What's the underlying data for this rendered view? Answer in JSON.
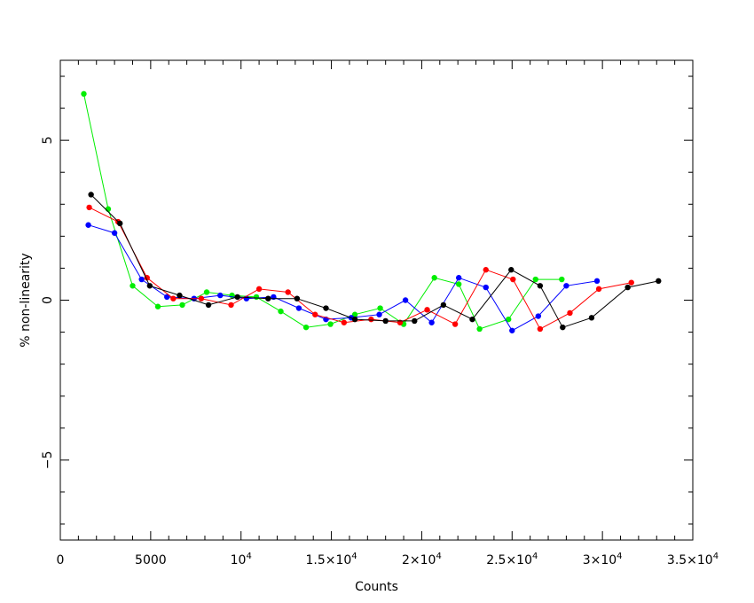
{
  "chart_data": {
    "type": "scatter",
    "title": "",
    "xlabel": "Counts",
    "ylabel": "% non-linearity",
    "xlim": [
      0,
      35000
    ],
    "ylim": [
      -7.5,
      7.5
    ],
    "grid": false,
    "x_ticks": [
      {
        "value": 0,
        "label": "0"
      },
      {
        "value": 5000,
        "label": "5000"
      },
      {
        "value": 10000,
        "label": "10",
        "exp": "4"
      },
      {
        "value": 15000,
        "label": "1.5×10",
        "exp": "4"
      },
      {
        "value": 20000,
        "label": "2×10",
        "exp": "4"
      },
      {
        "value": 25000,
        "label": "2.5×10",
        "exp": "4"
      },
      {
        "value": 30000,
        "label": "3×10",
        "exp": "4"
      },
      {
        "value": 35000,
        "label": "3.5×10",
        "exp": "4"
      }
    ],
    "y_ticks": [
      {
        "value": 5,
        "label": "5"
      },
      {
        "value": 0,
        "label": "0"
      },
      {
        "value": -5,
        "label": "−5"
      }
    ],
    "series": [
      {
        "color": "#00ee00",
        "points": [
          [
            1300,
            6.45
          ],
          [
            2650,
            2.85
          ],
          [
            4000,
            0.45
          ],
          [
            5400,
            -0.2
          ],
          [
            6750,
            -0.15
          ],
          [
            8100,
            0.25
          ],
          [
            9500,
            0.15
          ],
          [
            10850,
            0.1
          ],
          [
            12200,
            -0.35
          ],
          [
            13600,
            -0.85
          ],
          [
            14950,
            -0.75
          ],
          [
            16300,
            -0.45
          ],
          [
            17700,
            -0.25
          ],
          [
            19000,
            -0.75
          ],
          [
            20700,
            0.7
          ],
          [
            22050,
            0.5
          ],
          [
            23200,
            -0.9
          ],
          [
            24800,
            -0.6
          ],
          [
            26300,
            0.65
          ],
          [
            27750,
            0.65
          ]
        ]
      },
      {
        "color": "#0000ff",
        "points": [
          [
            1550,
            2.35
          ],
          [
            3000,
            2.1
          ],
          [
            4500,
            0.65
          ],
          [
            5900,
            0.1
          ],
          [
            7400,
            0.05
          ],
          [
            8850,
            0.15
          ],
          [
            10300,
            0.05
          ],
          [
            11800,
            0.1
          ],
          [
            13200,
            -0.25
          ],
          [
            14700,
            -0.6
          ],
          [
            16100,
            -0.55
          ],
          [
            17650,
            -0.45
          ],
          [
            19100,
            0.0
          ],
          [
            20550,
            -0.7
          ],
          [
            22050,
            0.7
          ],
          [
            23550,
            0.4
          ],
          [
            25000,
            -0.95
          ],
          [
            26450,
            -0.5
          ],
          [
            28000,
            0.45
          ],
          [
            29700,
            0.6
          ]
        ]
      },
      {
        "color": "#ff0000",
        "points": [
          [
            1600,
            2.9
          ],
          [
            3200,
            2.45
          ],
          [
            4800,
            0.7
          ],
          [
            6250,
            0.05
          ],
          [
            7800,
            0.05
          ],
          [
            9450,
            -0.15
          ],
          [
            11000,
            0.35
          ],
          [
            12600,
            0.25
          ],
          [
            14100,
            -0.45
          ],
          [
            15700,
            -0.7
          ],
          [
            17200,
            -0.6
          ],
          [
            18800,
            -0.7
          ],
          [
            20300,
            -0.3
          ],
          [
            21850,
            -0.75
          ],
          [
            23550,
            0.95
          ],
          [
            25050,
            0.65
          ],
          [
            26550,
            -0.9
          ],
          [
            28200,
            -0.4
          ],
          [
            29800,
            0.35
          ],
          [
            31600,
            0.55
          ]
        ]
      },
      {
        "color": "#000000",
        "points": [
          [
            1700,
            3.3
          ],
          [
            3300,
            2.4
          ],
          [
            4950,
            0.45
          ],
          [
            6600,
            0.15
          ],
          [
            8200,
            -0.15
          ],
          [
            9800,
            0.1
          ],
          [
            11500,
            0.05
          ],
          [
            13100,
            0.05
          ],
          [
            14700,
            -0.25
          ],
          [
            16300,
            -0.6
          ],
          [
            18000,
            -0.65
          ],
          [
            19600,
            -0.65
          ],
          [
            21200,
            -0.15
          ],
          [
            22800,
            -0.6
          ],
          [
            24950,
            0.95
          ],
          [
            26550,
            0.45
          ],
          [
            27800,
            -0.85
          ],
          [
            29400,
            -0.55
          ],
          [
            31400,
            0.4
          ],
          [
            33100,
            0.6
          ]
        ]
      }
    ]
  }
}
